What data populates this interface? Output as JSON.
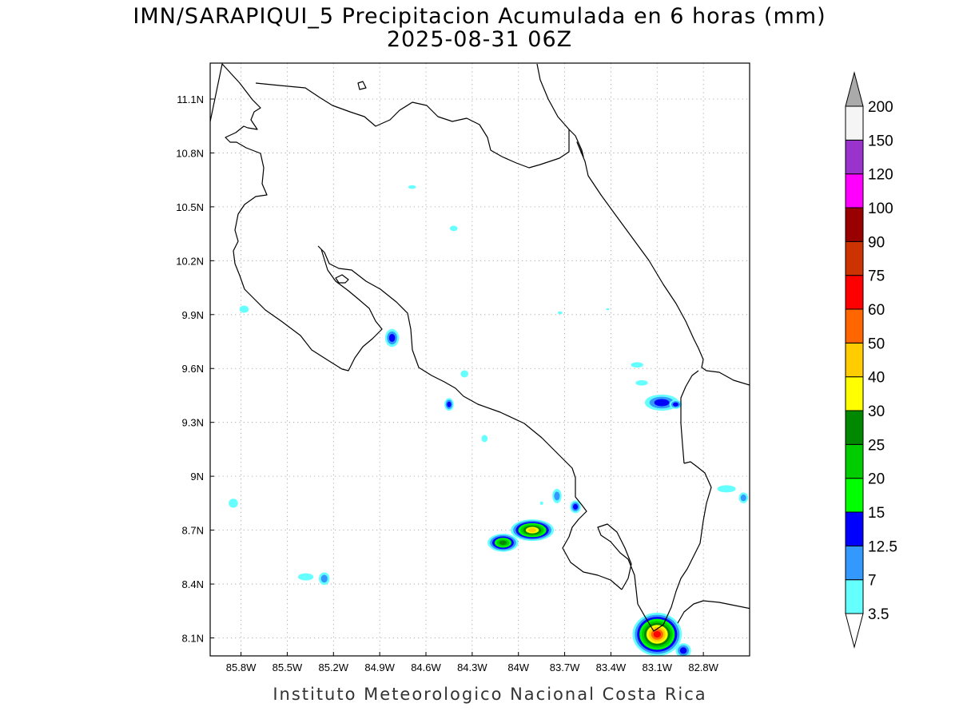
{
  "title": {
    "line1": "IMN/SARAPIQUI_5 Precipitacion Acumulada en 6 horas (mm)",
    "line2": "2025-08-31 06Z"
  },
  "credit": "Instituto Meteorologico Nacional Costa Rica",
  "map": {
    "lon_range": [
      -86.0,
      -82.5
    ],
    "lat_range": [
      8.0,
      11.3
    ],
    "lon_ticks": [
      {
        "value": -85.8,
        "label": "85.8W"
      },
      {
        "value": -85.5,
        "label": "85.5W"
      },
      {
        "value": -85.2,
        "label": "85.2W"
      },
      {
        "value": -84.9,
        "label": "84.9W"
      },
      {
        "value": -84.6,
        "label": "84.6W"
      },
      {
        "value": -84.3,
        "label": "84.3W"
      },
      {
        "value": -84.0,
        "label": "84W"
      },
      {
        "value": -83.7,
        "label": "83.7W"
      },
      {
        "value": -83.4,
        "label": "83.4W"
      },
      {
        "value": -83.1,
        "label": "83.1W"
      },
      {
        "value": -82.8,
        "label": "82.8W"
      }
    ],
    "lat_ticks": [
      {
        "value": 8.1,
        "label": "8.1N"
      },
      {
        "value": 8.4,
        "label": "8.4N"
      },
      {
        "value": 8.7,
        "label": "8.7N"
      },
      {
        "value": 9.0,
        "label": "9N"
      },
      {
        "value": 9.3,
        "label": "9.3N"
      },
      {
        "value": 9.6,
        "label": "9.6N"
      },
      {
        "value": 9.9,
        "label": "9.9N"
      },
      {
        "value": 10.2,
        "label": "10.2N"
      },
      {
        "value": 10.5,
        "label": "10.5N"
      },
      {
        "value": 10.8,
        "label": "10.8N"
      },
      {
        "value": 11.1,
        "label": "11.1N"
      }
    ],
    "grid": "dotted",
    "coastline_color": "#000000"
  },
  "legend": {
    "placement": "right",
    "levels": [
      "3.5",
      "7",
      "12.5",
      "15",
      "20",
      "25",
      "30",
      "40",
      "50",
      "60",
      "75",
      "90",
      "100",
      "120",
      "150",
      "200"
    ],
    "colors": [
      "#66ffff",
      "#3399ff",
      "#0000ff",
      "#00ff00",
      "#00cc00",
      "#008800",
      "#ffff00",
      "#ffcc00",
      "#ff6600",
      "#ff0000",
      "#cc3300",
      "#990000",
      "#ff00ff",
      "#9933cc",
      "#f5f5f5"
    ],
    "over_color": "#aaaaaa",
    "under_color": "#ffffff"
  },
  "precip_cells": [
    {
      "lon": -84.82,
      "lat": 9.77,
      "rlon": 0.045,
      "rlat": 0.05,
      "level": 2
    },
    {
      "lon": -85.85,
      "lat": 8.85,
      "rlon": 0.03,
      "rlat": 0.025,
      "level": 0
    },
    {
      "lon": -85.78,
      "lat": 9.93,
      "rlon": 0.03,
      "rlat": 0.02,
      "level": 0
    },
    {
      "lon": -85.38,
      "lat": 8.44,
      "rlon": 0.05,
      "rlat": 0.02,
      "level": 0
    },
    {
      "lon": -85.26,
      "lat": 8.43,
      "rlon": 0.035,
      "rlat": 0.035,
      "level": 1
    },
    {
      "lon": -84.45,
      "lat": 9.4,
      "rlon": 0.03,
      "rlat": 0.035,
      "level": 2
    },
    {
      "lon": -84.35,
      "lat": 9.57,
      "rlon": 0.025,
      "rlat": 0.02,
      "level": 0
    },
    {
      "lon": -84.42,
      "lat": 10.38,
      "rlon": 0.025,
      "rlat": 0.015,
      "level": 0
    },
    {
      "lon": -84.69,
      "lat": 10.61,
      "rlon": 0.025,
      "rlat": 0.01,
      "level": 0
    },
    {
      "lon": -84.22,
      "lat": 9.21,
      "rlon": 0.02,
      "rlat": 0.02,
      "level": 0
    },
    {
      "lon": -83.75,
      "lat": 8.89,
      "rlon": 0.03,
      "rlat": 0.04,
      "level": 1
    },
    {
      "lon": -83.63,
      "lat": 8.83,
      "rlon": 0.035,
      "rlat": 0.035,
      "level": 2
    },
    {
      "lon": -83.91,
      "lat": 8.7,
      "rlon": 0.14,
      "rlat": 0.06,
      "level": 7
    },
    {
      "lon": -84.1,
      "lat": 8.63,
      "rlon": 0.1,
      "rlat": 0.05,
      "level": 5
    },
    {
      "lon": -83.1,
      "lat": 8.12,
      "rlon": 0.16,
      "rlat": 0.12,
      "level": 9
    },
    {
      "lon": -82.93,
      "lat": 8.03,
      "rlon": 0.05,
      "rlat": 0.04,
      "level": 2
    },
    {
      "lon": -83.07,
      "lat": 9.41,
      "rlon": 0.11,
      "rlat": 0.045,
      "level": 2
    },
    {
      "lon": -82.98,
      "lat": 9.4,
      "rlon": 0.04,
      "rlat": 0.025,
      "level": 2
    },
    {
      "lon": -83.23,
      "lat": 9.62,
      "rlon": 0.04,
      "rlat": 0.015,
      "level": 0
    },
    {
      "lon": -83.2,
      "lat": 9.52,
      "rlon": 0.04,
      "rlat": 0.015,
      "level": 0
    },
    {
      "lon": -82.65,
      "lat": 8.93,
      "rlon": 0.06,
      "rlat": 0.02,
      "level": 0
    },
    {
      "lon": -82.54,
      "lat": 8.88,
      "rlon": 0.03,
      "rlat": 0.03,
      "level": 1
    },
    {
      "lon": -83.73,
      "lat": 9.91,
      "rlon": 0.015,
      "rlat": 0.008,
      "level": 0
    },
    {
      "lon": -83.42,
      "lat": 9.93,
      "rlon": 0.01,
      "rlat": 0.006,
      "level": 0
    },
    {
      "lon": -83.85,
      "lat": 8.85,
      "rlon": 0.01,
      "rlat": 0.01,
      "level": 0
    }
  ]
}
